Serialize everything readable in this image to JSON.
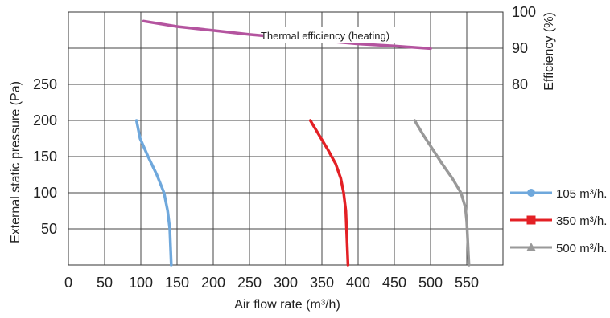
{
  "chart_data": {
    "type": "line",
    "xlabel": "Air flow rate (m³/h)",
    "ylabel": "External static pressure (Pa)",
    "y2label": "Efficiency (%)",
    "xlim": [
      0,
      600
    ],
    "ylim": [
      0,
      350
    ],
    "y2lim": [
      80,
      100
    ],
    "x_ticks": [
      "0",
      "50",
      "100",
      "150",
      "200",
      "250",
      "300",
      "350",
      "400",
      "450",
      "500",
      "550"
    ],
    "y_ticks": [
      "50",
      "100",
      "150",
      "200",
      "250"
    ],
    "y2_ticks": [
      "80",
      "90",
      "100"
    ],
    "grid": true,
    "legend_position": "right",
    "annotation": "Thermal efficiency (heating)",
    "series": [
      {
        "name": "105 m³/h.",
        "axis": "left",
        "color": "#6fa8dc",
        "marker": "circle",
        "points": [
          [
            94,
            200
          ],
          [
            99,
            175
          ],
          [
            110,
            150
          ],
          [
            122,
            125
          ],
          [
            132,
            100
          ],
          [
            137,
            75
          ],
          [
            140,
            50
          ],
          [
            141,
            25
          ],
          [
            142,
            0
          ]
        ]
      },
      {
        "name": "350 m³/h.",
        "axis": "left",
        "color": "#e32025",
        "marker": "square",
        "points": [
          [
            334,
            200
          ],
          [
            346,
            180
          ],
          [
            358,
            160
          ],
          [
            369,
            140
          ],
          [
            376,
            120
          ],
          [
            380,
            100
          ],
          [
            383,
            75
          ],
          [
            384,
            50
          ],
          [
            385,
            25
          ],
          [
            386,
            0
          ]
        ]
      },
      {
        "name": "500 m³/h.",
        "axis": "left",
        "color": "#999999",
        "marker": "triangle",
        "points": [
          [
            478,
            200
          ],
          [
            490,
            180
          ],
          [
            503,
            160
          ],
          [
            516,
            140
          ],
          [
            530,
            120
          ],
          [
            542,
            100
          ],
          [
            548,
            80
          ],
          [
            550,
            60
          ],
          [
            551,
            40
          ],
          [
            552,
            20
          ],
          [
            553,
            0
          ]
        ]
      },
      {
        "name": "",
        "axis": "right",
        "color": "#b4549f",
        "marker": "none",
        "points": [
          [
            104,
            97.5
          ],
          [
            150,
            96
          ],
          [
            200,
            94.9
          ],
          [
            250,
            93.8
          ],
          [
            300,
            92.9
          ],
          [
            350,
            92.1
          ],
          [
            400,
            91.2
          ],
          [
            450,
            90.6
          ],
          [
            500,
            89.9
          ]
        ]
      }
    ]
  }
}
